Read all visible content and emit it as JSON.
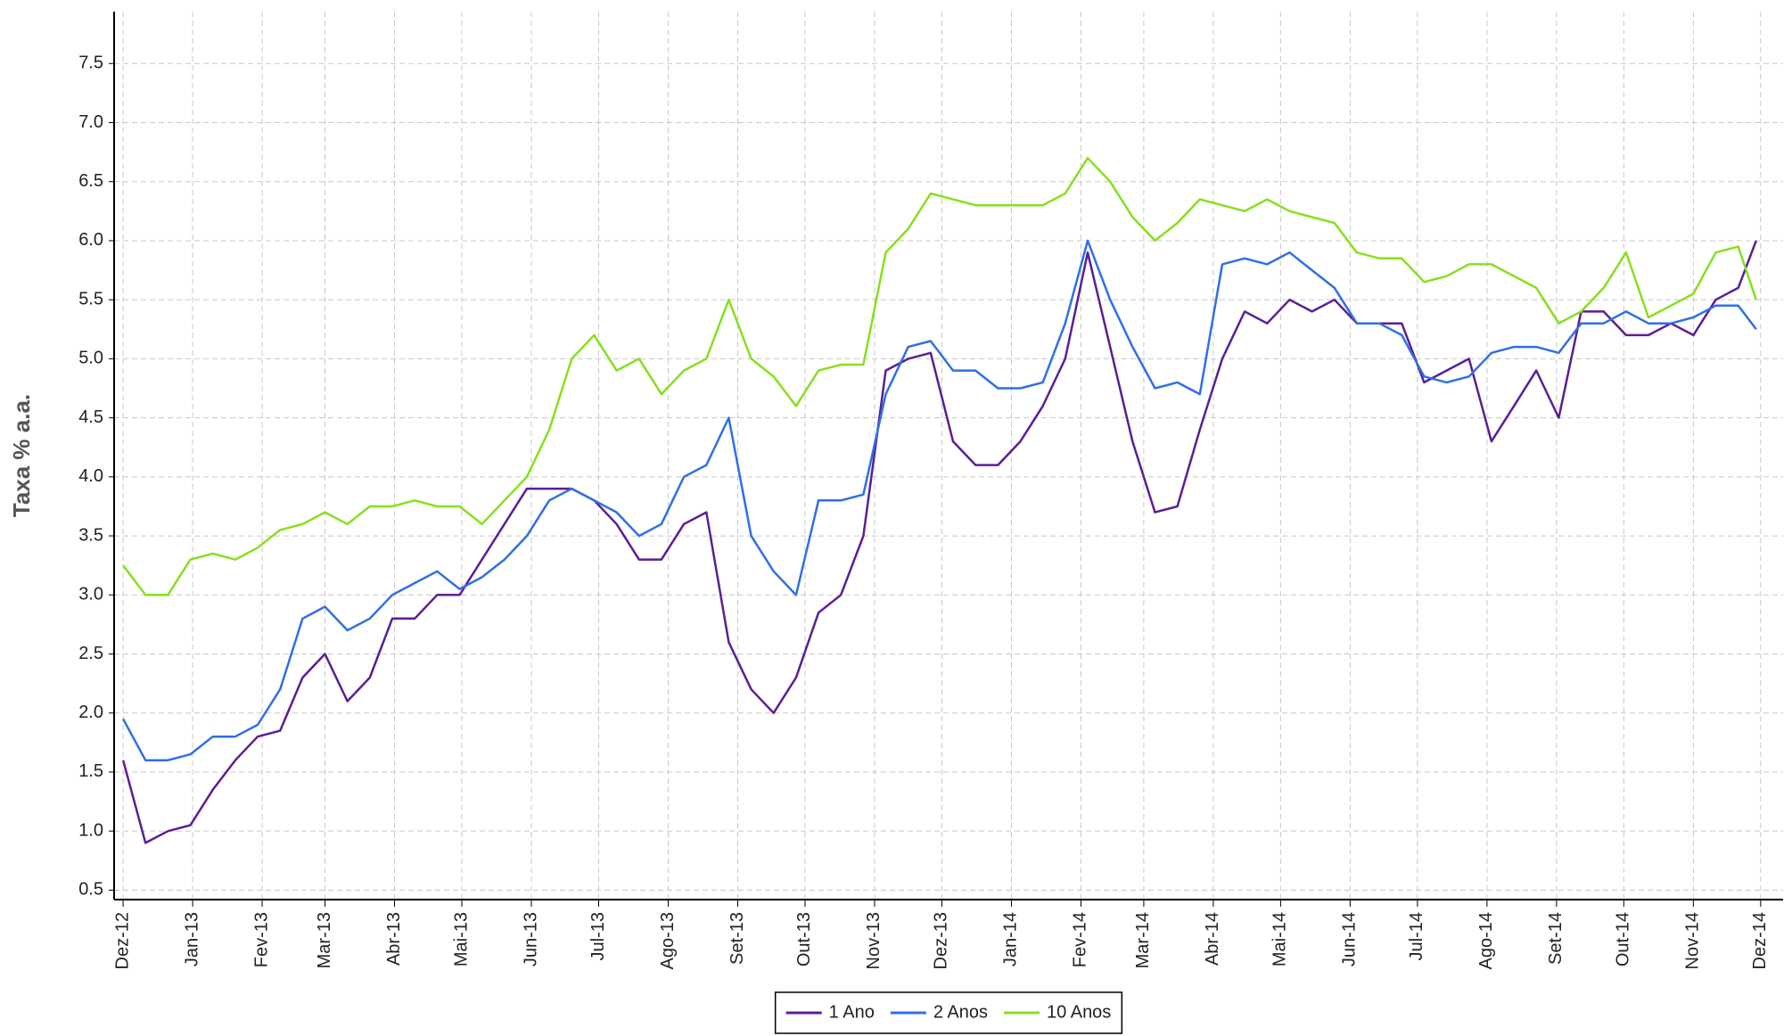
{
  "chart_data": {
    "type": "line",
    "y_label": "Taxa % a.a.",
    "x": [
      0,
      10,
      20,
      30,
      40,
      50,
      60,
      70,
      80,
      90,
      100,
      110,
      120,
      130,
      140,
      150,
      160,
      170,
      180,
      190,
      200,
      210,
      220,
      230,
      240,
      250,
      260,
      270,
      280,
      290,
      300,
      310,
      320,
      330,
      340,
      350,
      360,
      370,
      380,
      390,
      400,
      410,
      420,
      430,
      440,
      450,
      460,
      470,
      480,
      490,
      500,
      510,
      520,
      530,
      540,
      550,
      560,
      570,
      580,
      590,
      600,
      610,
      620,
      630,
      640,
      650,
      660,
      670,
      680,
      690,
      700,
      710,
      720,
      728
    ],
    "xlim": [
      -4,
      740
    ],
    "xticks": [
      {
        "value": 0,
        "label": "Dez-12"
      },
      {
        "value": 31,
        "label": "Jan-13"
      },
      {
        "value": 62,
        "label": "Fev-13"
      },
      {
        "value": 90,
        "label": "Mar-13"
      },
      {
        "value": 121,
        "label": "Abr-13"
      },
      {
        "value": 151,
        "label": "Mai-13"
      },
      {
        "value": 182,
        "label": "Jun-13"
      },
      {
        "value": 212,
        "label": "Jul-13"
      },
      {
        "value": 243,
        "label": "Ago-13"
      },
      {
        "value": 274,
        "label": "Set-13"
      },
      {
        "value": 304,
        "label": "Out-13"
      },
      {
        "value": 335,
        "label": "Nov-13"
      },
      {
        "value": 365,
        "label": "Dez-13"
      },
      {
        "value": 396,
        "label": "Jan-14"
      },
      {
        "value": 427,
        "label": "Fev-14"
      },
      {
        "value": 455,
        "label": "Mar-14"
      },
      {
        "value": 486,
        "label": "Abr-14"
      },
      {
        "value": 516,
        "label": "Mai-14"
      },
      {
        "value": 547,
        "label": "Jun-14"
      },
      {
        "value": 577,
        "label": "Jul-14"
      },
      {
        "value": 608,
        "label": "Ago-14"
      },
      {
        "value": 639,
        "label": "Set-14"
      },
      {
        "value": 669,
        "label": "Out-14"
      },
      {
        "value": 700,
        "label": "Nov-14"
      },
      {
        "value": 730,
        "label": "Dez-14"
      }
    ],
    "ylim": [
      0.42,
      7.94
    ],
    "yticks": [
      0.5,
      {
        "value": 1,
        "label": "1.0"
      },
      1.5,
      {
        "value": 2,
        "label": "2.0"
      },
      2.5,
      {
        "value": 3,
        "label": "3.0"
      },
      3.5,
      {
        "value": 4,
        "label": "4.0"
      },
      4.5,
      {
        "value": 5,
        "label": "5.0"
      },
      5.5,
      {
        "value": 6,
        "label": "6.0"
      },
      6.5,
      {
        "value": 7,
        "label": "7.0"
      },
      7.5
    ],
    "grid": true,
    "legend": "bottom",
    "series": [
      {
        "name": "1 Ano",
        "color": "#5a1e96",
        "values": [
          1.6,
          0.9,
          1.0,
          1.05,
          1.35,
          1.6,
          1.8,
          1.85,
          2.3,
          2.5,
          2.1,
          2.3,
          2.8,
          2.8,
          3.0,
          3.0,
          3.3,
          3.6,
          3.9,
          3.9,
          3.9,
          3.8,
          3.6,
          3.3,
          3.3,
          3.6,
          3.7,
          2.6,
          2.2,
          2.0,
          2.3,
          2.85,
          3.0,
          3.5,
          4.9,
          5.0,
          5.05,
          4.3,
          4.1,
          4.1,
          4.3,
          4.6,
          5.0,
          5.9,
          5.1,
          4.3,
          3.7,
          3.75,
          4.4,
          5.0,
          5.4,
          5.3,
          5.5,
          5.4,
          5.5,
          5.3,
          5.3,
          5.3,
          4.8,
          4.9,
          5.0,
          4.3,
          4.6,
          4.9,
          4.5,
          5.4,
          5.4,
          5.2,
          5.2,
          5.3,
          5.2,
          5.5,
          5.6,
          6.0
        ]
      },
      {
        "name": "2 Anos",
        "color": "#2f6fe8",
        "values": [
          1.95,
          1.6,
          1.6,
          1.65,
          1.8,
          1.8,
          1.9,
          2.2,
          2.8,
          2.9,
          2.7,
          2.8,
          3.0,
          3.1,
          3.2,
          3.05,
          3.15,
          3.3,
          3.5,
          3.8,
          3.9,
          3.8,
          3.7,
          3.5,
          3.6,
          4.0,
          4.1,
          4.5,
          3.5,
          3.2,
          3.0,
          3.8,
          3.8,
          3.85,
          4.7,
          5.1,
          5.15,
          4.9,
          4.9,
          4.75,
          4.75,
          4.8,
          5.3,
          6.0,
          5.5,
          5.1,
          4.75,
          4.8,
          4.7,
          5.8,
          5.85,
          5.8,
          5.9,
          5.75,
          5.6,
          5.3,
          5.3,
          5.2,
          4.85,
          4.8,
          4.85,
          5.05,
          5.1,
          5.1,
          5.05,
          5.3,
          5.3,
          5.4,
          5.3,
          5.3,
          5.35,
          5.45,
          5.45,
          5.25
        ]
      },
      {
        "name": "10 Anos",
        "color": "#86e01e",
        "values": [
          3.25,
          3.0,
          3.0,
          3.3,
          3.35,
          3.3,
          3.4,
          3.55,
          3.6,
          3.7,
          3.6,
          3.75,
          3.75,
          3.8,
          3.75,
          3.75,
          3.6,
          3.8,
          4.0,
          4.4,
          5.0,
          5.2,
          4.9,
          5.0,
          4.7,
          4.9,
          5.0,
          5.5,
          5.0,
          4.85,
          4.6,
          4.9,
          4.95,
          4.95,
          5.9,
          6.1,
          6.4,
          6.35,
          6.3,
          6.3,
          6.3,
          6.3,
          6.4,
          6.7,
          6.5,
          6.2,
          6.0,
          6.15,
          6.35,
          6.3,
          6.25,
          6.35,
          6.25,
          6.2,
          6.15,
          5.9,
          5.85,
          5.85,
          5.65,
          5.7,
          5.8,
          5.8,
          5.7,
          5.6,
          5.3,
          5.4,
          5.6,
          5.9,
          5.35,
          5.45,
          5.55,
          5.9,
          5.95,
          5.5
        ]
      }
    ]
  }
}
